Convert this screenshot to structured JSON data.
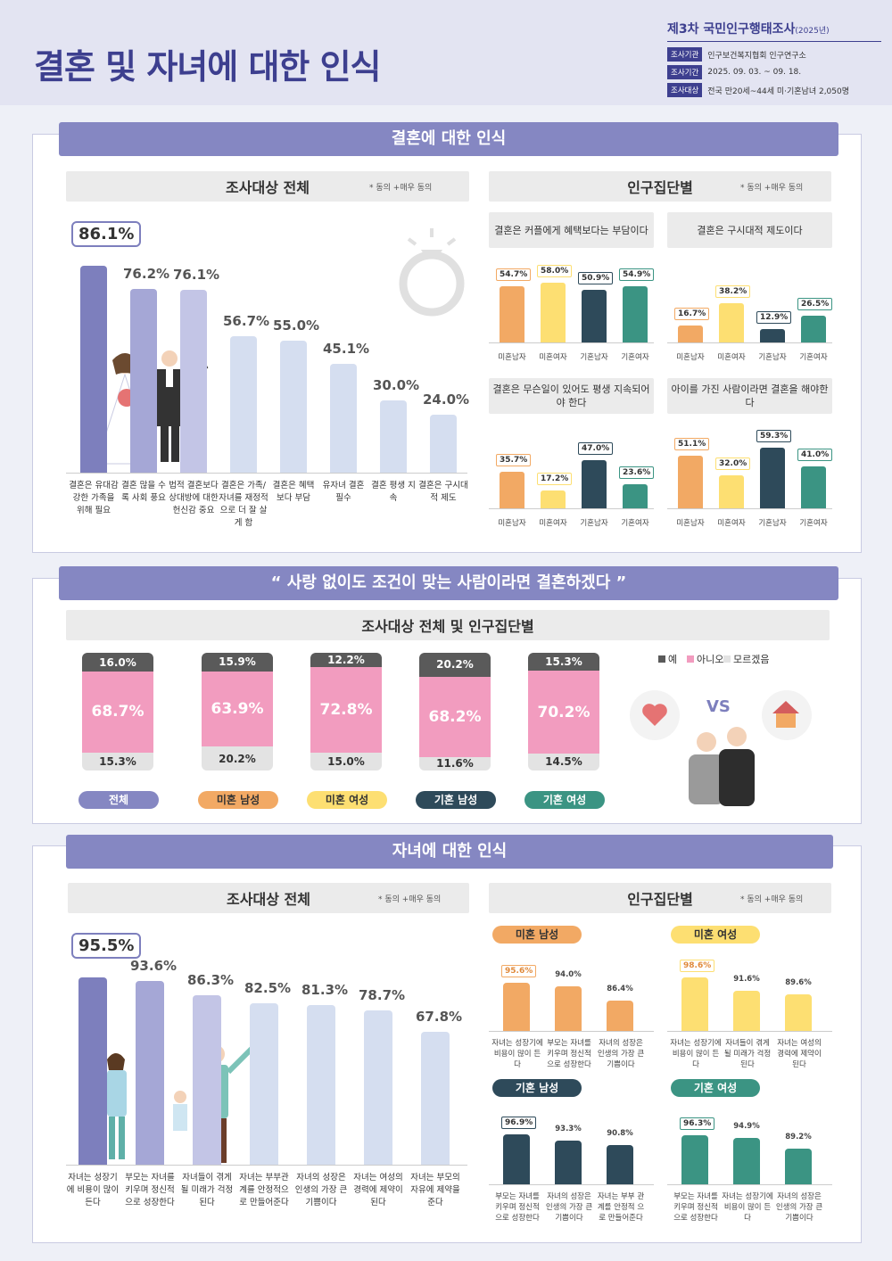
{
  "header": {
    "title": "결혼 및 자녀에 대한 인식",
    "survey_title": "제3차 국민인구행태조사",
    "survey_year": "(2025년)",
    "rows": [
      {
        "tag": "조사기관",
        "text": "인구보건복지협회 인구연구소"
      },
      {
        "tag": "조사기간",
        "text": "2025. 09. 03. ~ 09. 18."
      },
      {
        "tag": "조사대상",
        "text": "전국 만20세~44세 미·기혼남녀 2,050명"
      }
    ]
  },
  "section1": {
    "ribbon": "결혼에 대한 인식",
    "left_title": "조사대상 전체",
    "right_title": "인구집단별",
    "note": "* 동의 +매우 동의"
  },
  "section2": {
    "ribbon": "사랑 없이도 조건이 맞는 사람이라면 결혼하겠다",
    "sub_title": "조사대상 전체 및 인구집단별",
    "vs": "VS"
  },
  "section3": {
    "ribbon": "자녀에 대한 인식",
    "left_title": "조사대상 전체",
    "right_title": "인구집단별",
    "note": "* 동의 +매우 동의"
  },
  "chart_data": [
    {
      "type": "bar",
      "id": "marriage_overall",
      "unit": "%",
      "categories": [
        "결혼은 유대감 강한 가족을 위해 필요",
        "결혼 많을 수록 사회 풍요",
        "법적 결혼보다 상대방에 대한 헌신감 중요",
        "결혼은 가족/자녀를 재정적으로 더 잘 살게 함",
        "결혼은 혜택 보다 부담",
        "유자녀 결혼 필수",
        "결혼 평생 지속",
        "결혼은 구시대적 제도"
      ],
      "values": [
        86.1,
        76.2,
        76.1,
        56.7,
        55.0,
        45.1,
        30.0,
        24.0
      ],
      "labels": [
        "86.1%",
        "76.2%",
        "76.1%",
        "56.7%",
        "55.0%",
        "45.1%",
        "30.0%",
        "24.0%"
      ]
    },
    {
      "type": "bar",
      "id": "marriage_groups",
      "unit": "%",
      "groups": [
        "미혼남자",
        "미혼여자",
        "기혼남자",
        "기혼여자"
      ],
      "panels": [
        {
          "title": "결혼은 커플에게 혜택보다는 부담이다",
          "values": [
            54.7,
            58.0,
            50.9,
            54.9
          ],
          "labels": [
            "54.7%",
            "58.0%",
            "50.9%",
            "54.9%"
          ]
        },
        {
          "title": "결혼은 구시대적 제도이다",
          "values": [
            16.7,
            38.2,
            12.9,
            26.5
          ],
          "labels": [
            "16.7%",
            "38.2%",
            "12.9%",
            "26.5%"
          ]
        },
        {
          "title": "결혼은 무슨일이 있어도 평생 지속되어야 한다",
          "values": [
            35.7,
            17.2,
            47.0,
            23.6
          ],
          "labels": [
            "35.7%",
            "17.2%",
            "47.0%",
            "23.6%"
          ]
        },
        {
          "title": "아이를 가진 사람이라면 결혼을 해야한다",
          "values": [
            51.1,
            32.0,
            59.3,
            41.0
          ],
          "labels": [
            "51.1%",
            "32.0%",
            "59.3%",
            "41.0%"
          ]
        }
      ]
    },
    {
      "type": "bar",
      "stacked": true,
      "id": "condition_marriage",
      "unit": "%",
      "legend": [
        "예",
        "아니오",
        "모르겠음"
      ],
      "categories": [
        "전체",
        "미혼 남성",
        "미혼 여성",
        "기혼 남성",
        "기혼 여성"
      ],
      "series": [
        {
          "name": "예",
          "values": [
            16.0,
            15.9,
            12.2,
            20.2,
            15.3
          ],
          "labels": [
            "16.0%",
            "15.9%",
            "12.2%",
            "20.2%",
            "15.3%"
          ]
        },
        {
          "name": "아니오",
          "values": [
            68.7,
            63.9,
            72.8,
            68.2,
            70.2
          ],
          "labels": [
            "68.7%",
            "63.9%",
            "72.8%",
            "68.2%",
            "70.2%"
          ]
        },
        {
          "name": "모르겠음",
          "values": [
            15.3,
            20.2,
            15.0,
            11.6,
            14.5
          ],
          "labels": [
            "15.3%",
            "20.2%",
            "15.0%",
            "11.6%",
            "14.5%"
          ]
        }
      ]
    },
    {
      "type": "bar",
      "id": "children_overall",
      "unit": "%",
      "categories": [
        "자녀는 성장기에 비용이 많이 든다",
        "부모는 자녀를 키우며 정신적으로 성장한다",
        "자녀들이 겪게 될 미래가 걱정된다",
        "자녀는 부부관계를 안정적으로 만들어준다",
        "자녀의 성장은 인생의 가장 큰 기쁨이다",
        "자녀는 여성의 경력에 제약이 된다",
        "자녀는 부모의 자유에 제약을 준다"
      ],
      "values": [
        95.5,
        93.6,
        86.3,
        82.5,
        81.3,
        78.7,
        67.8
      ],
      "labels": [
        "95.5%",
        "93.6%",
        "86.3%",
        "82.5%",
        "81.3%",
        "78.7%",
        "67.8%"
      ]
    },
    {
      "type": "bar",
      "id": "children_groups",
      "unit": "%",
      "panels": [
        {
          "group": "미혼 남성",
          "categories": [
            "자녀는 성장기에 비용이 많이 든다",
            "부모는 자녀를 키우며 정신적 으로 성장한다",
            "자녀의 성장은 인생의 가장 큰 기쁨이다"
          ],
          "values": [
            95.6,
            94.0,
            86.4
          ],
          "labels": [
            "95.6%",
            "94.0%",
            "86.4%"
          ]
        },
        {
          "group": "미혼 여성",
          "categories": [
            "자녀는 성장기에 비용이 많이 든다",
            "자녀들이 겪게 될 미래가 걱정된다",
            "자녀는 여성의 경력에 제약이 된다"
          ],
          "values": [
            98.6,
            91.6,
            89.6
          ],
          "labels": [
            "98.6%",
            "91.6%",
            "89.6%"
          ]
        },
        {
          "group": "기혼 남성",
          "categories": [
            "부모는 자녀를 키우며 정신적 으로 성장한다",
            "자녀의 성장은 인생의 가장 큰 기쁨이다",
            "자녀는 부부 관계를 안정적 으로 만들어준다"
          ],
          "values": [
            96.9,
            93.3,
            90.8
          ],
          "labels": [
            "96.9%",
            "93.3%",
            "90.8%"
          ]
        },
        {
          "group": "기혼 여성",
          "categories": [
            "부모는 자녀를 키우며 정신적 으로 성장한다",
            "자녀는 성장기에 비용이 많이 든다",
            "자녀의 성장은 인생의 가장 큰 기쁨이다"
          ],
          "values": [
            96.3,
            94.9,
            89.2
          ],
          "labels": [
            "96.3%",
            "94.9%",
            "89.2%"
          ]
        }
      ]
    }
  ],
  "colors": {
    "overall_bar1": "#7d7fbd",
    "overall_bar2": "#a5a7d6",
    "overall_bar3": "#c3c5e6",
    "overall_rest": "#d5def0",
    "single_male": "#f2a964",
    "single_female": "#fddf72",
    "married_male": "#2e4a5a",
    "married_female": "#3b9483",
    "yes": "#5a5a5a",
    "no": "#f29cbf",
    "dontknow": "#e3e3e3"
  }
}
